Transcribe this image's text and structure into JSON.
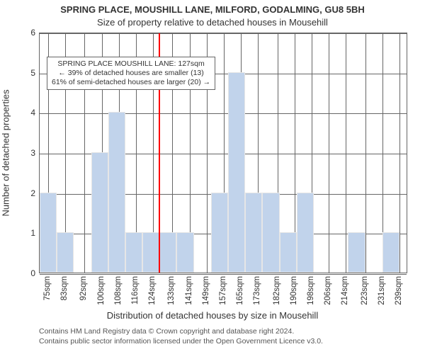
{
  "title_main": "SPRING PLACE, MOUSHILL LANE, MILFORD, GODALMING, GU8 5BH",
  "title_sub": "Size of property relative to detached houses in Mousehill",
  "yaxis_label": "Number of detached properties",
  "xaxis_label": "Distribution of detached houses by size in Mousehill",
  "attribution_line1": "Contains HM Land Registry data © Crown copyright and database right 2024.",
  "attribution_line2": "Contains public sector information licensed under the Open Government Licence v3.0.",
  "annotation": {
    "line1": "SPRING PLACE MOUSHILL LANE: 127sqm",
    "line2": "← 39% of detached houses are smaller (13)",
    "line3": "61% of semi-detached houses are larger (20) →"
  },
  "histogram": {
    "type": "histogram",
    "x_min": 71,
    "x_max": 243,
    "bin_width": 8,
    "x_ticks": [
      75,
      83,
      92,
      100,
      108,
      116,
      124,
      133,
      141,
      149,
      157,
      165,
      173,
      182,
      190,
      198,
      206,
      214,
      223,
      231,
      239
    ],
    "x_tick_suffix": "sqm",
    "y_min": 0,
    "y_max": 6,
    "y_ticks": [
      0,
      1,
      2,
      3,
      4,
      5,
      6
    ],
    "bar_fill": "#c1d3eb",
    "bar_stroke": "#e6e6e6",
    "grid_color": "#666666",
    "background": "#ffffff",
    "highlight_value": 127,
    "highlight_color": "#ff0000",
    "bins": [
      {
        "start": 71,
        "count": 2
      },
      {
        "start": 79,
        "count": 1
      },
      {
        "start": 87,
        "count": 0
      },
      {
        "start": 95,
        "count": 3
      },
      {
        "start": 103,
        "count": 4
      },
      {
        "start": 111,
        "count": 1
      },
      {
        "start": 119,
        "count": 1
      },
      {
        "start": 127,
        "count": 1
      },
      {
        "start": 135,
        "count": 1
      },
      {
        "start": 143,
        "count": 0
      },
      {
        "start": 151,
        "count": 2
      },
      {
        "start": 159,
        "count": 5
      },
      {
        "start": 167,
        "count": 2
      },
      {
        "start": 175,
        "count": 2
      },
      {
        "start": 183,
        "count": 1
      },
      {
        "start": 191,
        "count": 2
      },
      {
        "start": 199,
        "count": 0
      },
      {
        "start": 207,
        "count": 0
      },
      {
        "start": 215,
        "count": 1
      },
      {
        "start": 223,
        "count": 0
      },
      {
        "start": 231,
        "count": 1
      },
      {
        "start": 239,
        "count": 0
      }
    ]
  },
  "fonts": {
    "title_size_pt": 13,
    "axis_label_size_pt": 13,
    "tick_size_pt": 12,
    "annotation_size_pt": 10.5,
    "attribution_size_pt": 10.5
  }
}
